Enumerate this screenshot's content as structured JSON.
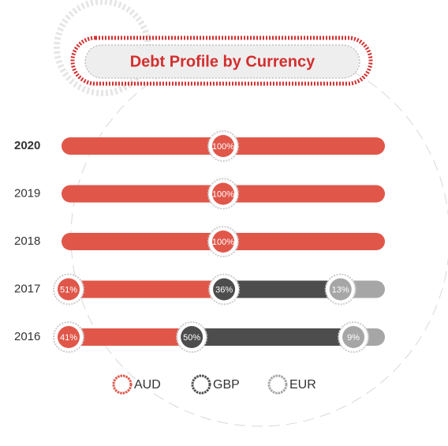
{
  "chart_data": {
    "type": "stacked_bar_horizontal",
    "title": "Debt Profile by Currency",
    "categories": [
      "2020",
      "2019",
      "2018",
      "2017",
      "2016"
    ],
    "highlight": "2020",
    "xlim": [
      0,
      100
    ],
    "series": [
      {
        "name": "AUD",
        "color": "#e0574a",
        "values": [
          100,
          100,
          100,
          51,
          41
        ],
        "value_labels": [
          "100%",
          "100%",
          "100%",
          "51%",
          "41%"
        ]
      },
      {
        "name": "GBP",
        "color": "#4d4d4d",
        "values": [
          0,
          0,
          0,
          36,
          50
        ],
        "value_labels": [
          null,
          null,
          null,
          "36%",
          "50%"
        ]
      },
      {
        "name": "EUR",
        "color": "#a6a6a6",
        "values": [
          0,
          0,
          0,
          13,
          9
        ],
        "value_labels": [
          null,
          null,
          null,
          "13%",
          "9%"
        ]
      }
    ]
  }
}
